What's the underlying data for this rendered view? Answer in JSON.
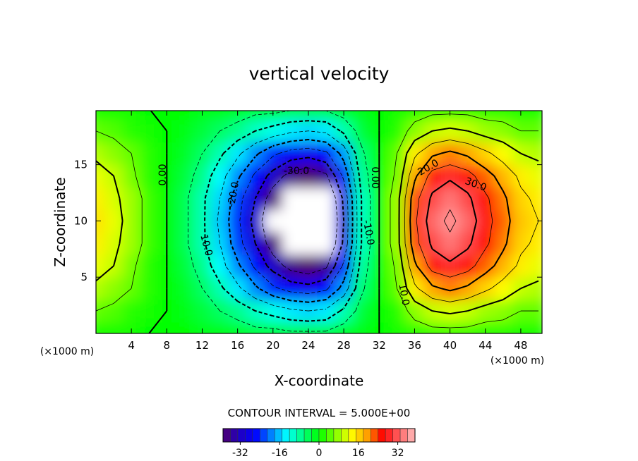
{
  "chart_data": {
    "type": "contour",
    "title": "vertical velocity",
    "x_label": "X-coordinate",
    "y_label": "Z-coordinate",
    "x_unit": "(×1000 m)",
    "x": [
      0,
      2,
      4,
      6,
      8,
      10,
      12,
      14,
      16,
      18,
      20,
      22,
      24,
      26,
      28,
      30,
      32,
      34,
      36,
      38,
      40,
      42,
      44,
      46,
      48,
      50
    ],
    "y": [
      0,
      2,
      4,
      6,
      8,
      10,
      12,
      14,
      16,
      18,
      20
    ],
    "values": [
      [
        1,
        1,
        1,
        0,
        0,
        0,
        -1,
        -1,
        -2,
        -3,
        -3,
        -4,
        -4,
        -4,
        -2,
        -1,
        0,
        1,
        2,
        3,
        3,
        3,
        2,
        2,
        1,
        1
      ],
      [
        5,
        4,
        2,
        1,
        0,
        -1,
        -3,
        -5,
        -7,
        -10,
        -12,
        -14,
        -15,
        -14,
        -9,
        -3,
        0,
        2,
        7,
        10,
        11,
        10,
        8,
        7,
        5,
        5
      ],
      [
        9,
        7,
        5,
        2,
        0,
        -2,
        -5,
        -9,
        -14,
        -19,
        -24,
        -27,
        -28,
        -26,
        -18,
        -6,
        0,
        5,
        14,
        19,
        21,
        19,
        16,
        13,
        10,
        9
      ],
      [
        12,
        10,
        6,
        2,
        0,
        -3,
        -7,
        -13,
        -19,
        -26,
        -32,
        -37,
        -39,
        -36,
        -24,
        -8,
        0,
        6,
        19,
        27,
        29,
        27,
        22,
        18,
        14,
        12
      ],
      [
        14,
        11,
        8,
        3,
        0,
        -4,
        -9,
        -15,
        -23,
        -30,
        -38,
        -44,
        -46,
        -42,
        -29,
        -10,
        0,
        8,
        23,
        31,
        34,
        31,
        26,
        21,
        16,
        14
      ],
      [
        15,
        12,
        8,
        3,
        0,
        -4,
        -9,
        -16,
        -24,
        -32,
        -40,
        -46,
        -48,
        -44,
        -30,
        -10,
        0,
        8,
        24,
        33,
        36,
        33,
        27,
        22,
        17,
        15
      ],
      [
        14,
        11,
        8,
        3,
        0,
        -4,
        -9,
        -15,
        -23,
        -30,
        -38,
        -44,
        -46,
        -42,
        -29,
        -10,
        0,
        8,
        23,
        31,
        34,
        31,
        26,
        21,
        16,
        14
      ],
      [
        12,
        10,
        6,
        2,
        0,
        -3,
        -7,
        -13,
        -19,
        -26,
        -32,
        -37,
        -39,
        -36,
        -24,
        -8,
        0,
        6,
        19,
        27,
        29,
        27,
        22,
        18,
        14,
        12
      ],
      [
        9,
        7,
        5,
        2,
        0,
        -2,
        -5,
        -9,
        -14,
        -19,
        -24,
        -27,
        -28,
        -26,
        -18,
        -6,
        0,
        5,
        14,
        19,
        21,
        19,
        16,
        13,
        10,
        9
      ],
      [
        5,
        4,
        2,
        1,
        0,
        -1,
        -3,
        -5,
        -7,
        -10,
        -12,
        -14,
        -15,
        -14,
        -9,
        -3,
        0,
        2,
        7,
        10,
        11,
        10,
        8,
        7,
        5,
        5
      ],
      [
        1,
        1,
        1,
        0,
        0,
        0,
        -1,
        -1,
        -2,
        -3,
        -3,
        -4,
        -4,
        -4,
        -2,
        -1,
        0,
        1,
        2,
        3,
        3,
        3,
        2,
        2,
        1,
        1
      ]
    ],
    "xlim": [
      0,
      50.4
    ],
    "ylim": [
      0,
      19.8
    ],
    "xticks": [
      4,
      8,
      12,
      16,
      20,
      24,
      28,
      32,
      36,
      40,
      44,
      48
    ],
    "yticks": [
      5,
      10,
      15
    ],
    "clim": [
      -39,
      39
    ],
    "colorbar_ticks": [
      -32,
      -16,
      0,
      16,
      32
    ],
    "colormap": [
      "#500070",
      "#2000c0",
      "#0000ff",
      "#0080ff",
      "#00ffff",
      "#00ff80",
      "#00ff00",
      "#80ff00",
      "#ffff00",
      "#ffa000",
      "#ff0000",
      "#ff6060",
      "#ffc0c0"
    ],
    "contour_interval": {
      "value": 5,
      "label": "CONTOUR INTERVAL = 5.000E+00"
    },
    "contour_labels": [
      "0.00",
      "-30.0",
      "-20.0",
      "10.0",
      "0.00",
      "-10.0",
      "20.0",
      "30.0",
      "10.0"
    ]
  }
}
